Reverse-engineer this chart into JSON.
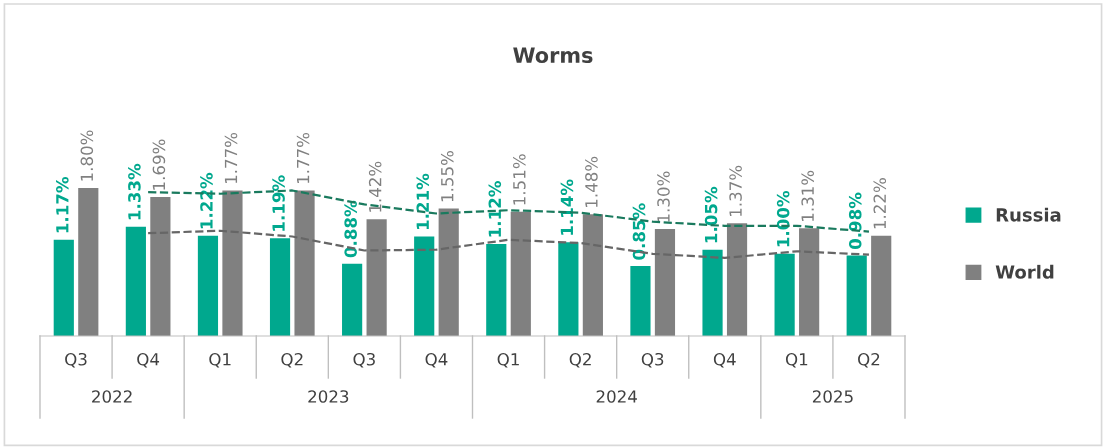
{
  "chart_data": {
    "type": "bar",
    "title": "Worms",
    "categories": [
      "Q3",
      "Q4",
      "Q1",
      "Q2",
      "Q3",
      "Q4",
      "Q1",
      "Q2",
      "Q3",
      "Q4",
      "Q1",
      "Q2"
    ],
    "series": [
      {
        "name": "Russia",
        "color": "#00a88e",
        "values": [
          1.17,
          1.33,
          1.22,
          1.19,
          0.88,
          1.21,
          1.12,
          1.14,
          0.85,
          1.05,
          1.0,
          0.98
        ],
        "value_labels": [
          "1.17%",
          "1.33%",
          "1.22%",
          "1.19%",
          "0.88%",
          "1.21%",
          "1.12%",
          "1.14%",
          "0.85%",
          "1.05%",
          "1.00%",
          "0.98%"
        ]
      },
      {
        "name": "World",
        "color": "#808080",
        "values": [
          1.8,
          1.69,
          1.77,
          1.77,
          1.42,
          1.55,
          1.51,
          1.48,
          1.3,
          1.37,
          1.31,
          1.22
        ],
        "value_labels": [
          "1.80%",
          "1.69%",
          "1.77%",
          "1.77%",
          "1.42%",
          "1.55%",
          "1.51%",
          "1.48%",
          "1.30%",
          "1.37%",
          "1.31%",
          "1.22%"
        ]
      },
      {
        "type": "line",
        "color": "#1a7a5e",
        "line_style": "dashed",
        "values": [
          null,
          1.75,
          1.73,
          1.77,
          1.6,
          1.49,
          1.53,
          1.5,
          1.39,
          1.34,
          1.34,
          1.27
        ]
      },
      {
        "type": "line",
        "color": "#666666",
        "line_style": "dashed",
        "values": [
          null,
          1.25,
          1.28,
          1.21,
          1.04,
          1.05,
          1.17,
          1.13,
          1.0,
          0.95,
          1.03,
          0.99
        ]
      }
    ],
    "annotations": [
      "2022",
      "2023",
      "2024",
      "2025"
    ],
    "legend": "right",
    "grid": false
  }
}
